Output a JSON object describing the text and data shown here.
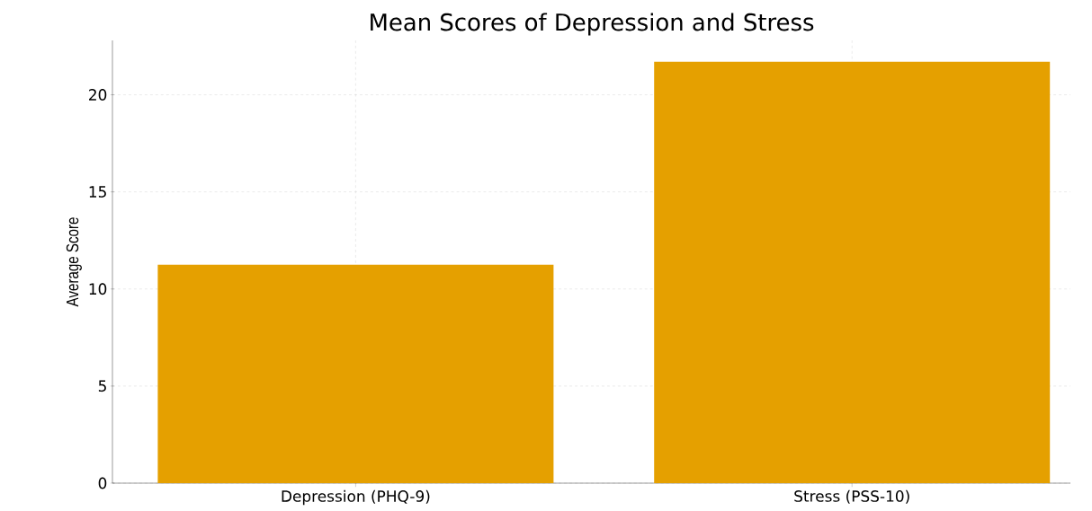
{
  "chart_data": {
    "type": "bar",
    "title": "Mean Scores of Depression and Stress",
    "ylabel": "Average Score",
    "categories": [
      "Depression (PHQ-9)",
      "Stress (PSS-10)"
    ],
    "values": [
      11.25,
      21.7
    ],
    "color": "#e5a000",
    "ylim": [
      0,
      22.8
    ],
    "yticks": [
      0,
      5,
      10,
      15,
      20
    ],
    "grid": true
  }
}
